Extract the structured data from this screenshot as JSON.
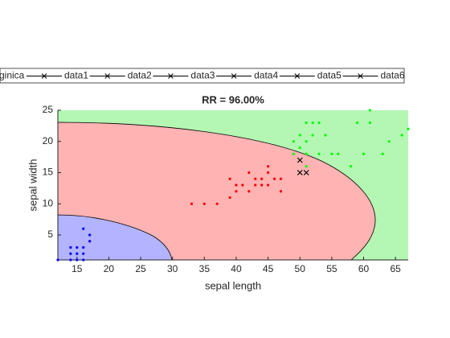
{
  "chart_data": {
    "type": "scatter",
    "title": "RR = 96.00%",
    "x_label": "sepal length",
    "y_label": "sepal width",
    "xlim": [
      12,
      67
    ],
    "ylim": [
      1,
      25
    ],
    "xticks": [
      15,
      20,
      25,
      30,
      35,
      40,
      45,
      50,
      55,
      60,
      65
    ],
    "yticks": [
      5,
      10,
      15,
      20,
      25
    ],
    "legend": [
      "ginica",
      "data1",
      "data2",
      "data3",
      "data4",
      "data5",
      "data6"
    ],
    "legend_color": "#000000",
    "series": [
      {
        "color": "#0000ff",
        "marker": "dot",
        "x": [
          12,
          14,
          15,
          16,
          14,
          15,
          16,
          15,
          16,
          14,
          16,
          17,
          17
        ],
        "y": [
          1,
          3,
          3,
          3,
          2,
          2,
          2,
          1,
          1,
          1,
          6,
          5,
          4
        ]
      },
      {
        "color": "#ff0000",
        "marker": "dot",
        "x": [
          33,
          35,
          37,
          39,
          39,
          40,
          41,
          40,
          42,
          42,
          43,
          44,
          44,
          45,
          45,
          45,
          46,
          47,
          47,
          43
        ],
        "y": [
          10,
          10,
          10,
          11,
          14,
          13,
          13,
          12,
          15,
          12,
          13,
          13,
          14,
          13,
          15,
          16,
          14,
          12,
          14,
          14
        ]
      },
      {
        "color": "#00ff00",
        "marker": "dot",
        "x": [
          49,
          49,
          50,
          50,
          51,
          51,
          51,
          51,
          52,
          53,
          52,
          53,
          54,
          55,
          56,
          58,
          59,
          60,
          61,
          61,
          63,
          64,
          66,
          67
        ],
        "y": [
          18,
          20,
          21,
          19,
          20,
          18,
          16,
          23,
          23,
          23,
          21,
          18,
          21,
          18,
          18,
          16,
          23,
          18,
          25,
          23,
          18,
          20,
          21,
          22
        ]
      },
      {
        "color": "#000000",
        "marker": "x",
        "x": [
          50,
          50,
          51
        ],
        "y": [
          17,
          15,
          15
        ]
      }
    ]
  }
}
